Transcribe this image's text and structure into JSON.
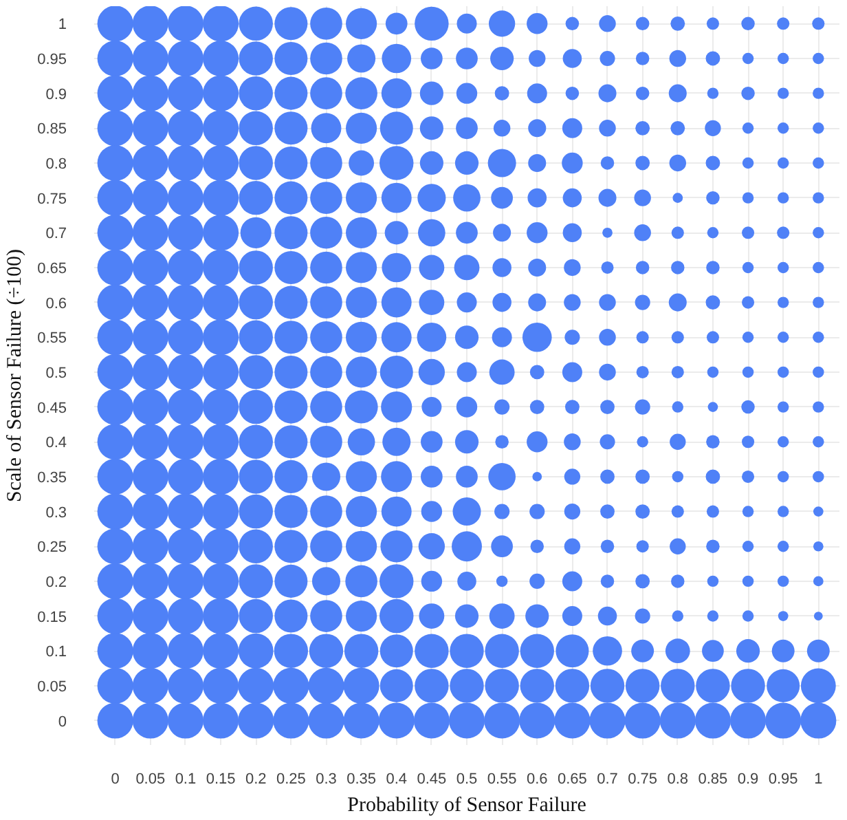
{
  "chart_data": {
    "type": "bubble",
    "xlabel": "Probability of Sensor Failure",
    "ylabel": "Scale of Sensor Failure (÷100)",
    "x": [
      0,
      0.05,
      0.1,
      0.15,
      0.2,
      0.25,
      0.3,
      0.35,
      0.4,
      0.45,
      0.5,
      0.55,
      0.6,
      0.65,
      0.7,
      0.75,
      0.8,
      0.85,
      0.9,
      0.95,
      1
    ],
    "xlim": [
      -0.03,
      1.03
    ],
    "ylim": [
      -0.035,
      1.025
    ],
    "xticks": [
      0,
      0.05,
      0.1,
      0.15,
      0.2,
      0.25,
      0.3,
      0.35,
      0.4,
      0.45,
      0.5,
      0.55,
      0.6,
      0.65,
      0.7,
      0.75,
      0.8,
      0.85,
      0.9,
      0.95,
      1
    ],
    "yticks": [
      0,
      0.05,
      0.1,
      0.15,
      0.2,
      0.25,
      0.3,
      0.35,
      0.4,
      0.45,
      0.5,
      0.55,
      0.6,
      0.65,
      0.7,
      0.75,
      0.8,
      0.85,
      0.9,
      0.95,
      1
    ],
    "grid": true,
    "series": [
      {
        "color": "#4f81f7",
        "values": [
          1,
          1,
          1,
          1,
          1,
          1,
          1,
          1,
          1,
          1,
          1,
          1,
          1,
          1,
          1,
          1,
          1,
          1,
          1,
          1,
          1
        ],
        "sizes": [
          1,
          1,
          1,
          1,
          0.9,
          0.85,
          0.8,
          0.75,
          0.37,
          0.9,
          0.31,
          0.54,
          0.34,
          0.14,
          0.22,
          0.14,
          0.16,
          0.12,
          0.14,
          0.12,
          0.12
        ]
      },
      {
        "color": "#4f81f7",
        "values": [
          0.95,
          0.95,
          0.95,
          0.95,
          0.95,
          0.95,
          0.95,
          0.95,
          0.95,
          0.95,
          0.95,
          0.95,
          0.95,
          0.95,
          0.95,
          0.95,
          0.95,
          0.95,
          0.95,
          0.95,
          0.95
        ],
        "sizes": [
          1,
          1,
          1,
          1,
          0.9,
          0.85,
          0.8,
          0.62,
          0.67,
          0.37,
          0.37,
          0.43,
          0.22,
          0.28,
          0.18,
          0.14,
          0.22,
          0.16,
          0.1,
          0.1,
          0.1
        ]
      },
      {
        "color": "#4f81f7",
        "values": [
          0.9,
          0.9,
          0.9,
          0.9,
          0.9,
          0.9,
          0.9,
          0.9,
          0.9,
          0.9,
          0.9,
          0.9,
          0.9,
          0.9,
          0.9,
          0.9,
          0.9,
          0.9,
          0.9,
          0.9,
          0.9
        ],
        "sizes": [
          1,
          1,
          1,
          1,
          0.9,
          0.85,
          0.8,
          0.8,
          0.71,
          0.43,
          0.34,
          0.16,
          0.31,
          0.14,
          0.25,
          0.14,
          0.25,
          0.1,
          0.14,
          0.1,
          0.1
        ]
      },
      {
        "color": "#4f81f7",
        "values": [
          0.85,
          0.85,
          0.85,
          0.85,
          0.85,
          0.85,
          0.85,
          0.85,
          0.85,
          0.85,
          0.85,
          0.85,
          0.85,
          0.85,
          0.85,
          0.85,
          0.85,
          0.85,
          0.85,
          0.85,
          0.85
        ],
        "sizes": [
          1,
          1,
          1,
          1,
          0.9,
          0.85,
          0.71,
          0.75,
          0.85,
          0.43,
          0.37,
          0.22,
          0.25,
          0.31,
          0.22,
          0.16,
          0.16,
          0.2,
          0.1,
          0.1,
          0.1
        ]
      },
      {
        "color": "#4f81f7",
        "values": [
          0.8,
          0.8,
          0.8,
          0.8,
          0.8,
          0.8,
          0.8,
          0.8,
          0.8,
          0.8,
          0.8,
          0.8,
          0.8,
          0.8,
          0.8,
          0.8,
          0.8,
          0.8,
          0.8,
          0.8,
          0.8
        ],
        "sizes": [
          1,
          1,
          1,
          1,
          0.9,
          0.85,
          0.8,
          0.5,
          0.9,
          0.43,
          0.43,
          0.62,
          0.25,
          0.34,
          0.14,
          0.16,
          0.22,
          0.16,
          0.1,
          0.1,
          0.1
        ]
      },
      {
        "color": "#4f81f7",
        "values": [
          0.75,
          0.75,
          0.75,
          0.75,
          0.75,
          0.75,
          0.75,
          0.75,
          0.75,
          0.75,
          0.75,
          0.75,
          0.75,
          0.75,
          0.75,
          0.75,
          0.75,
          0.75,
          0.75,
          0.75,
          0.75
        ],
        "sizes": [
          1,
          1,
          1,
          1,
          0.9,
          0.85,
          0.8,
          0.75,
          0.71,
          0.62,
          0.58,
          0.37,
          0.28,
          0.28,
          0.25,
          0.22,
          0.08,
          0.14,
          0.1,
          0.1,
          0.1
        ]
      },
      {
        "color": "#4f81f7",
        "values": [
          0.7,
          0.7,
          0.7,
          0.7,
          0.7,
          0.7,
          0.7,
          0.7,
          0.7,
          0.7,
          0.7,
          0.7,
          0.7,
          0.7,
          0.7,
          0.7,
          0.7,
          0.7,
          0.7,
          0.7,
          0.7
        ],
        "sizes": [
          1,
          1,
          1,
          1,
          0.75,
          0.85,
          0.8,
          0.75,
          0.43,
          0.58,
          0.37,
          0.25,
          0.34,
          0.28,
          0.08,
          0.22,
          0.12,
          0.1,
          0.12,
          0.12,
          0.1
        ]
      },
      {
        "color": "#4f81f7",
        "values": [
          0.65,
          0.65,
          0.65,
          0.65,
          0.65,
          0.65,
          0.65,
          0.65,
          0.65,
          0.65,
          0.65,
          0.65,
          0.65,
          0.65,
          0.65,
          0.65,
          0.65,
          0.65,
          0.65,
          0.65,
          0.65
        ],
        "sizes": [
          1,
          1,
          1,
          1,
          0.9,
          0.85,
          0.8,
          0.75,
          0.67,
          0.5,
          0.5,
          0.28,
          0.25,
          0.22,
          0.12,
          0.14,
          0.14,
          0.14,
          0.1,
          0.1,
          0.1
        ]
      },
      {
        "color": "#4f81f7",
        "values": [
          0.6,
          0.6,
          0.6,
          0.6,
          0.6,
          0.6,
          0.6,
          0.6,
          0.6,
          0.6,
          0.6,
          0.6,
          0.6,
          0.6,
          0.6,
          0.6,
          0.6,
          0.6,
          0.6,
          0.6,
          0.6
        ],
        "sizes": [
          1,
          1,
          1,
          1,
          0.9,
          0.85,
          0.8,
          0.75,
          0.71,
          0.5,
          0.31,
          0.28,
          0.25,
          0.22,
          0.22,
          0.18,
          0.25,
          0.16,
          0.12,
          0.1,
          0.1
        ]
      },
      {
        "color": "#4f81f7",
        "values": [
          0.55,
          0.55,
          0.55,
          0.55,
          0.55,
          0.55,
          0.55,
          0.55,
          0.55,
          0.55,
          0.55,
          0.55,
          0.55,
          0.55,
          0.55,
          0.55,
          0.55,
          0.55,
          0.55,
          0.55,
          0.55
        ],
        "sizes": [
          1,
          1,
          1,
          1,
          0.9,
          0.85,
          0.8,
          0.75,
          0.71,
          0.67,
          0.43,
          0.31,
          0.67,
          0.18,
          0.22,
          0.12,
          0.12,
          0.12,
          0.1,
          0.1,
          0.1
        ]
      },
      {
        "color": "#4f81f7",
        "values": [
          0.5,
          0.5,
          0.5,
          0.5,
          0.5,
          0.5,
          0.5,
          0.5,
          0.5,
          0.5,
          0.5,
          0.5,
          0.5,
          0.5,
          0.5,
          0.5,
          0.5,
          0.5,
          0.5,
          0.5,
          0.5
        ],
        "sizes": [
          1,
          1,
          1,
          1,
          0.9,
          0.85,
          0.8,
          0.75,
          0.85,
          0.54,
          0.31,
          0.5,
          0.16,
          0.31,
          0.22,
          0.12,
          0.12,
          0.1,
          0.1,
          0.1,
          0.1
        ]
      },
      {
        "color": "#4f81f7",
        "values": [
          0.45,
          0.45,
          0.45,
          0.45,
          0.45,
          0.45,
          0.45,
          0.45,
          0.45,
          0.45,
          0.45,
          0.45,
          0.45,
          0.45,
          0.45,
          0.45,
          0.45,
          0.45,
          0.45,
          0.45,
          0.45
        ],
        "sizes": [
          1,
          1,
          1,
          1,
          0.9,
          0.85,
          0.8,
          0.85,
          0.75,
          0.31,
          0.34,
          0.18,
          0.16,
          0.16,
          0.16,
          0.18,
          0.1,
          0.08,
          0.14,
          0.1,
          0.1
        ]
      },
      {
        "color": "#4f81f7",
        "values": [
          0.4,
          0.4,
          0.4,
          0.4,
          0.4,
          0.4,
          0.4,
          0.4,
          0.4,
          0.4,
          0.4,
          0.4,
          0.4,
          0.4,
          0.4,
          0.4,
          0.4,
          0.4,
          0.4,
          0.4,
          0.4
        ],
        "sizes": [
          1,
          1,
          1,
          1,
          0.9,
          0.85,
          0.8,
          0.58,
          0.62,
          0.37,
          0.43,
          0.14,
          0.34,
          0.22,
          0.18,
          0.1,
          0.2,
          0.14,
          0.12,
          0.1,
          0.1
        ]
      },
      {
        "color": "#4f81f7",
        "values": [
          0.35,
          0.35,
          0.35,
          0.35,
          0.35,
          0.35,
          0.35,
          0.35,
          0.35,
          0.35,
          0.35,
          0.35,
          0.35,
          0.35,
          0.35,
          0.35,
          0.35,
          0.35,
          0.35,
          0.35,
          0.35
        ],
        "sizes": [
          1,
          1,
          1,
          1,
          0.9,
          0.85,
          0.62,
          0.75,
          0.75,
          0.37,
          0.37,
          0.58,
          0.07,
          0.2,
          0.16,
          0.16,
          0.1,
          0.16,
          0.12,
          0.1,
          0.1
        ]
      },
      {
        "color": "#4f81f7",
        "values": [
          0.3,
          0.3,
          0.3,
          0.3,
          0.3,
          0.3,
          0.3,
          0.3,
          0.3,
          0.3,
          0.3,
          0.3,
          0.3,
          0.3,
          0.3,
          0.3,
          0.3,
          0.3,
          0.3,
          0.3,
          0.3
        ],
        "sizes": [
          1,
          1,
          1,
          1,
          0.9,
          0.85,
          0.8,
          0.75,
          0.71,
          0.34,
          0.62,
          0.18,
          0.18,
          0.2,
          0.16,
          0.16,
          0.12,
          0.12,
          0.1,
          0.1,
          0.08
        ]
      },
      {
        "color": "#4f81f7",
        "values": [
          0.25,
          0.25,
          0.25,
          0.25,
          0.25,
          0.25,
          0.25,
          0.25,
          0.25,
          0.25,
          0.25,
          0.25,
          0.25,
          0.25,
          0.25,
          0.25,
          0.25,
          0.25,
          0.25,
          0.25,
          0.25
        ],
        "sizes": [
          1,
          1,
          1,
          1,
          0.9,
          0.85,
          0.8,
          0.75,
          0.8,
          0.54,
          0.71,
          0.37,
          0.14,
          0.2,
          0.14,
          0.12,
          0.2,
          0.14,
          0.1,
          0.1,
          0.08
        ]
      },
      {
        "color": "#4f81f7",
        "values": [
          0.2,
          0.2,
          0.2,
          0.2,
          0.2,
          0.2,
          0.2,
          0.2,
          0.2,
          0.2,
          0.2,
          0.2,
          0.2,
          0.2,
          0.2,
          0.2,
          0.2,
          0.2,
          0.2,
          0.2,
          0.2
        ],
        "sizes": [
          1,
          1,
          1,
          1,
          0.9,
          0.85,
          0.62,
          0.8,
          0.9,
          0.34,
          0.28,
          0.1,
          0.18,
          0.31,
          0.14,
          0.16,
          0.14,
          0.1,
          0.1,
          0.1,
          0.08
        ]
      },
      {
        "color": "#4f81f7",
        "values": [
          0.15,
          0.15,
          0.15,
          0.15,
          0.15,
          0.15,
          0.15,
          0.15,
          0.15,
          0.15,
          0.15,
          0.15,
          0.15,
          0.15,
          0.15,
          0.15,
          0.15,
          0.15,
          0.15,
          0.15,
          0.15
        ],
        "sizes": [
          1,
          1,
          1,
          1,
          0.9,
          0.85,
          0.8,
          0.75,
          0.9,
          0.5,
          0.43,
          0.5,
          0.43,
          0.31,
          0.28,
          0.18,
          0.1,
          0.1,
          0.1,
          0.08,
          0.06
        ]
      },
      {
        "color": "#4f81f7",
        "values": [
          0.1,
          0.1,
          0.1,
          0.1,
          0.1,
          0.1,
          0.1,
          0.1,
          0.1,
          0.1,
          0.1,
          0.1,
          0.1,
          0.1,
          0.1,
          0.1,
          0.1,
          0.1,
          0.1,
          0.1,
          0.1
        ],
        "sizes": [
          1,
          1,
          1,
          1,
          0.95,
          0.9,
          0.9,
          0.9,
          0.85,
          0.9,
          0.9,
          0.9,
          0.9,
          0.85,
          0.67,
          0.4,
          0.47,
          0.37,
          0.43,
          0.4,
          0.4
        ]
      },
      {
        "color": "#4f81f7",
        "values": [
          0.05,
          0.05,
          0.05,
          0.05,
          0.05,
          0.05,
          0.05,
          0.05,
          0.05,
          0.05,
          0.05,
          0.05,
          0.05,
          0.05,
          0.05,
          0.05,
          0.05,
          0.05,
          0.05,
          0.05,
          0.05
        ],
        "sizes": [
          1,
          1,
          1,
          1,
          1,
          1,
          1,
          1,
          0.85,
          0.9,
          0.9,
          0.9,
          0.9,
          0.9,
          0.9,
          0.9,
          0.9,
          0.9,
          0.9,
          0.85,
          0.95
        ]
      },
      {
        "color": "#4f81f7",
        "values": [
          0,
          0,
          0,
          0,
          0,
          0,
          0,
          0,
          0,
          0,
          0,
          0,
          0,
          0,
          0,
          0,
          0,
          0,
          0,
          0,
          0
        ],
        "sizes": [
          1,
          1,
          1,
          1,
          1,
          1,
          1,
          1,
          1,
          1,
          1,
          1,
          1,
          1,
          1,
          1,
          1,
          1,
          1,
          1,
          1
        ]
      }
    ]
  }
}
